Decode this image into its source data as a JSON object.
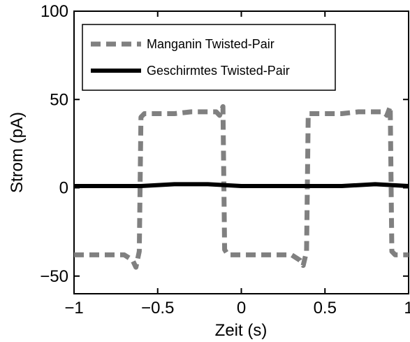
{
  "chart_data": {
    "type": "line",
    "title": "",
    "xlabel": "Zeit (s)",
    "ylabel": "Strom (pA)",
    "xlim": [
      -1,
      1
    ],
    "ylim": [
      -60,
      100
    ],
    "xticks": [
      -1,
      -0.5,
      0,
      0.5,
      1
    ],
    "yticks": [
      -50,
      0,
      50,
      100
    ],
    "xtick_labels": [
      "−1",
      "−0.5",
      "0",
      "0.5",
      "1"
    ],
    "ytick_labels": [
      "−50",
      "0",
      "50",
      "100"
    ],
    "grid": false,
    "legend_position": "top-left",
    "series": [
      {
        "name": "Manganin Twisted-Pair",
        "color": "#808080",
        "style": "dashed",
        "x": [
          -1.0,
          -0.9,
          -0.8,
          -0.7,
          -0.65,
          -0.63,
          -0.61,
          -0.6,
          -0.58,
          -0.5,
          -0.4,
          -0.3,
          -0.2,
          -0.15,
          -0.13,
          -0.11,
          -0.1,
          -0.08,
          0.0,
          0.1,
          0.2,
          0.3,
          0.35,
          0.37,
          0.39,
          0.4,
          0.42,
          0.5,
          0.6,
          0.7,
          0.8,
          0.85,
          0.87,
          0.89,
          0.9,
          0.92,
          1.0
        ],
        "y": [
          -38,
          -38,
          -38,
          -38,
          -41,
          -45,
          -36,
          40,
          42,
          42,
          42,
          43,
          43,
          43,
          41,
          46,
          -35,
          -38,
          -38,
          -38,
          -38,
          -38,
          -41,
          -44,
          -36,
          42,
          42,
          42,
          42,
          43,
          43,
          43,
          41,
          46,
          -36,
          -38,
          -38
        ]
      },
      {
        "name": "Geschirmtes Twisted-Pair",
        "color": "#000000",
        "style": "solid",
        "x": [
          -1.0,
          -0.8,
          -0.6,
          -0.4,
          -0.2,
          0.0,
          0.2,
          0.4,
          0.6,
          0.8,
          1.0
        ],
        "y": [
          1,
          1,
          1,
          2,
          2,
          1,
          1,
          1,
          1,
          2,
          1
        ]
      }
    ]
  }
}
